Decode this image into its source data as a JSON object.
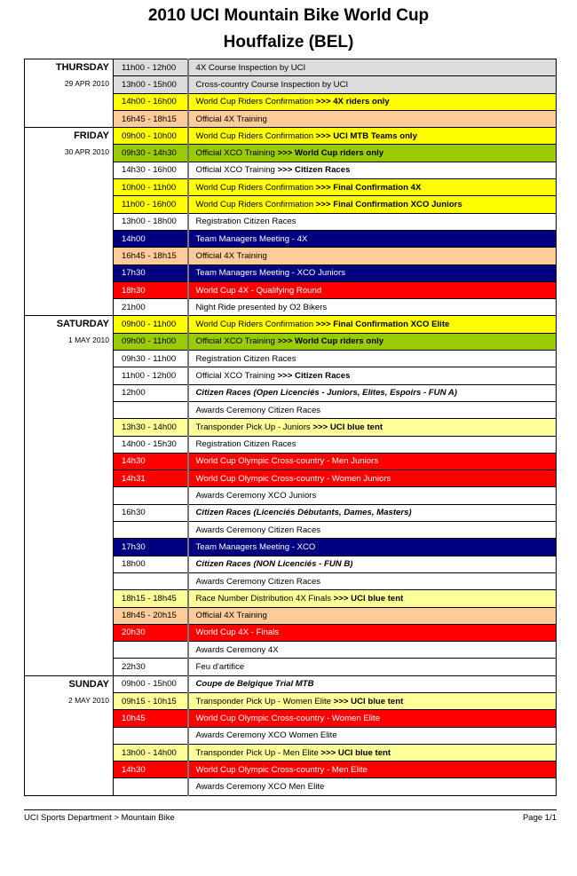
{
  "header": {
    "title": "2010 UCI Mountain Bike World Cup",
    "subtitle": "Houffalize (BEL)"
  },
  "colors": {
    "gray": "#dcdcdc",
    "yellow": "#ffff00",
    "peach": "#ffcc99",
    "green": "#99cc00",
    "white": "#ffffff",
    "navy": "#000080",
    "red": "#ff0000",
    "lightyellow": "#ffff99"
  },
  "days": [
    {
      "name": "THURSDAY",
      "date": "29 APR 2010",
      "rows": [
        {
          "time": "11h00 - 12h00",
          "text": "4X Course Inspection by UCI",
          "bold": "",
          "color": "gray"
        },
        {
          "time": "13h00 - 15h00",
          "text": "Cross-country Course Inspection by UCI",
          "bold": "",
          "color": "gray"
        },
        {
          "time": "14h00 - 16h00",
          "text": "World Cup Riders Confirmation ",
          "bold": ">>> 4X riders only",
          "color": "yellow"
        },
        {
          "time": "16h45 - 18h15",
          "text": "Official 4X Training",
          "bold": "",
          "color": "peach"
        }
      ]
    },
    {
      "name": "FRIDAY",
      "date": "30 APR 2010",
      "rows": [
        {
          "time": "09h00 - 10h00",
          "text": "World Cup Riders Confirmation ",
          "bold": ">>> UCI MTB Teams only",
          "color": "yellow"
        },
        {
          "time": "09h30 - 14h30",
          "text": "Official XCO Training ",
          "bold": ">>> World Cup riders only",
          "color": "green"
        },
        {
          "time": "14h30 - 16h00",
          "text": "Official XCO Training ",
          "bold": ">>> Citizen Races",
          "color": "white"
        },
        {
          "time": "10h00 - 11h00",
          "text": "World Cup Riders Confirmation ",
          "bold": ">>> Final Confirmation 4X",
          "color": "yellow"
        },
        {
          "time": "11h00 - 16h00",
          "text": "World Cup Riders Confirmation ",
          "bold": ">>> Final Confirmation XCO Juniors",
          "color": "yellow"
        },
        {
          "time": "13h00 - 18h00",
          "text": "Registration Citizen Races",
          "bold": "",
          "color": "white"
        },
        {
          "time": "14h00",
          "text": "Team Managers Meeting  -  4X",
          "bold": "",
          "color": "navy"
        },
        {
          "time": "16h45 - 18h15",
          "text": "Official 4X Training",
          "bold": "",
          "color": "peach"
        },
        {
          "time": "17h30",
          "text": "Team Managers Meeting  -  XCO Juniors",
          "bold": "",
          "color": "navy"
        },
        {
          "time": "18h30",
          "text": "World Cup 4X  -  Qualifying Round",
          "bold": "",
          "color": "red"
        },
        {
          "time": "21h00",
          "text": "Night Ride presented by O2 Bikers",
          "bold": "",
          "color": "white"
        }
      ]
    },
    {
      "name": "SATURDAY",
      "date": "1 MAY 2010",
      "rows": [
        {
          "time": "09h00 - 11h00",
          "text": "World Cup Riders Confirmation ",
          "bold": ">>> Final Confirmation XCO Elite",
          "color": "yellow"
        },
        {
          "time": "09h00 - 11h00",
          "text": "Official XCO Training ",
          "bold": ">>> World Cup riders only",
          "color": "green"
        },
        {
          "time": "09h30 - 11h00",
          "text": "Registration Citizen Races",
          "bold": "",
          "color": "white"
        },
        {
          "time": "11h00 - 12h00",
          "text": "Official XCO Training ",
          "bold": ">>> Citizen Races",
          "color": "white"
        },
        {
          "time": "12h00",
          "text": "Citizen Races (Open Licenciés - Juniors, Elites, Espoirs - FUN A)",
          "bold": "",
          "color": "white",
          "italic": true
        },
        {
          "time": "",
          "text": "Awards Ceremony Citizen Races",
          "bold": "",
          "color": "white"
        },
        {
          "time": "13h30 - 14h00",
          "text": "Transponder Pick Up - Juniors ",
          "bold": ">>> UCI blue tent",
          "color": "lightyellow"
        },
        {
          "time": "14h00 - 15h30",
          "text": "Registration Citizen Races",
          "bold": "",
          "color": "white"
        },
        {
          "time": "14h30",
          "text": "World Cup Olympic Cross-country  -  Men Juniors",
          "bold": "",
          "color": "red"
        },
        {
          "time": "14h31",
          "text": "World Cup Olympic Cross-country  -  Women Juniors",
          "bold": "",
          "color": "red"
        },
        {
          "time": "",
          "text": "Awards Ceremony XCO Juniors",
          "bold": "",
          "color": "white"
        },
        {
          "time": "16h30",
          "text": "Citizen Races (Licenciés Débutants, Dames, Masters)",
          "bold": "",
          "color": "white",
          "italic": true
        },
        {
          "time": "",
          "text": "Awards Ceremony Citizen Races",
          "bold": "",
          "color": "white"
        },
        {
          "time": "17h30",
          "text": "Team Managers Meeting  -  XCO",
          "bold": "",
          "color": "navy"
        },
        {
          "time": "18h00",
          "text": "Citizen Races (NON Licenciés - FUN B)",
          "bold": "",
          "color": "white",
          "italic": true
        },
        {
          "time": "",
          "text": "Awards Ceremony Citizen Races",
          "bold": "",
          "color": "white"
        },
        {
          "time": "18h15 - 18h45",
          "text": "Race Number Distribution 4X Finals ",
          "bold": ">>> UCI blue tent",
          "color": "lightyellow"
        },
        {
          "time": "18h45 - 20h15",
          "text": "Official 4X Training",
          "bold": "",
          "color": "peach"
        },
        {
          "time": "20h30",
          "text": "World Cup 4X  -  Finals",
          "bold": "",
          "color": "red"
        },
        {
          "time": "",
          "text": "Awards Ceremony 4X",
          "bold": "",
          "color": "white"
        },
        {
          "time": "22h30",
          "text": "Feu d'artifice",
          "bold": "",
          "color": "white"
        }
      ]
    },
    {
      "name": "SUNDAY",
      "date": "2 MAY 2010",
      "rows": [
        {
          "time": "09h00 - 15h00",
          "text": "Coupe de Belgique Trial MTB",
          "bold": "",
          "color": "white",
          "italic": true
        },
        {
          "time": "09h15 - 10h15",
          "text": "Transponder Pick Up - Women Elite ",
          "bold": ">>> UCI blue tent",
          "color": "lightyellow"
        },
        {
          "time": "10h45",
          "text": "World Cup Olympic Cross-country  -  Women Elite",
          "bold": "",
          "color": "red"
        },
        {
          "time": "",
          "text": "Awards Ceremony XCO Women Elite",
          "bold": "",
          "color": "white"
        },
        {
          "time": "13h00 - 14h00",
          "text": "Transponder Pick Up - Men Elite ",
          "bold": ">>> UCI blue tent",
          "color": "lightyellow"
        },
        {
          "time": "14h30",
          "text": "World Cup Olympic Cross-country  -  Men Elite",
          "bold": "",
          "color": "red"
        },
        {
          "time": "",
          "text": "Awards Ceremony XCO Men Elite",
          "bold": "",
          "color": "white"
        }
      ]
    }
  ],
  "footer": {
    "left": "UCI Sports Department > Mountain Bike",
    "right": "Page 1/1"
  }
}
